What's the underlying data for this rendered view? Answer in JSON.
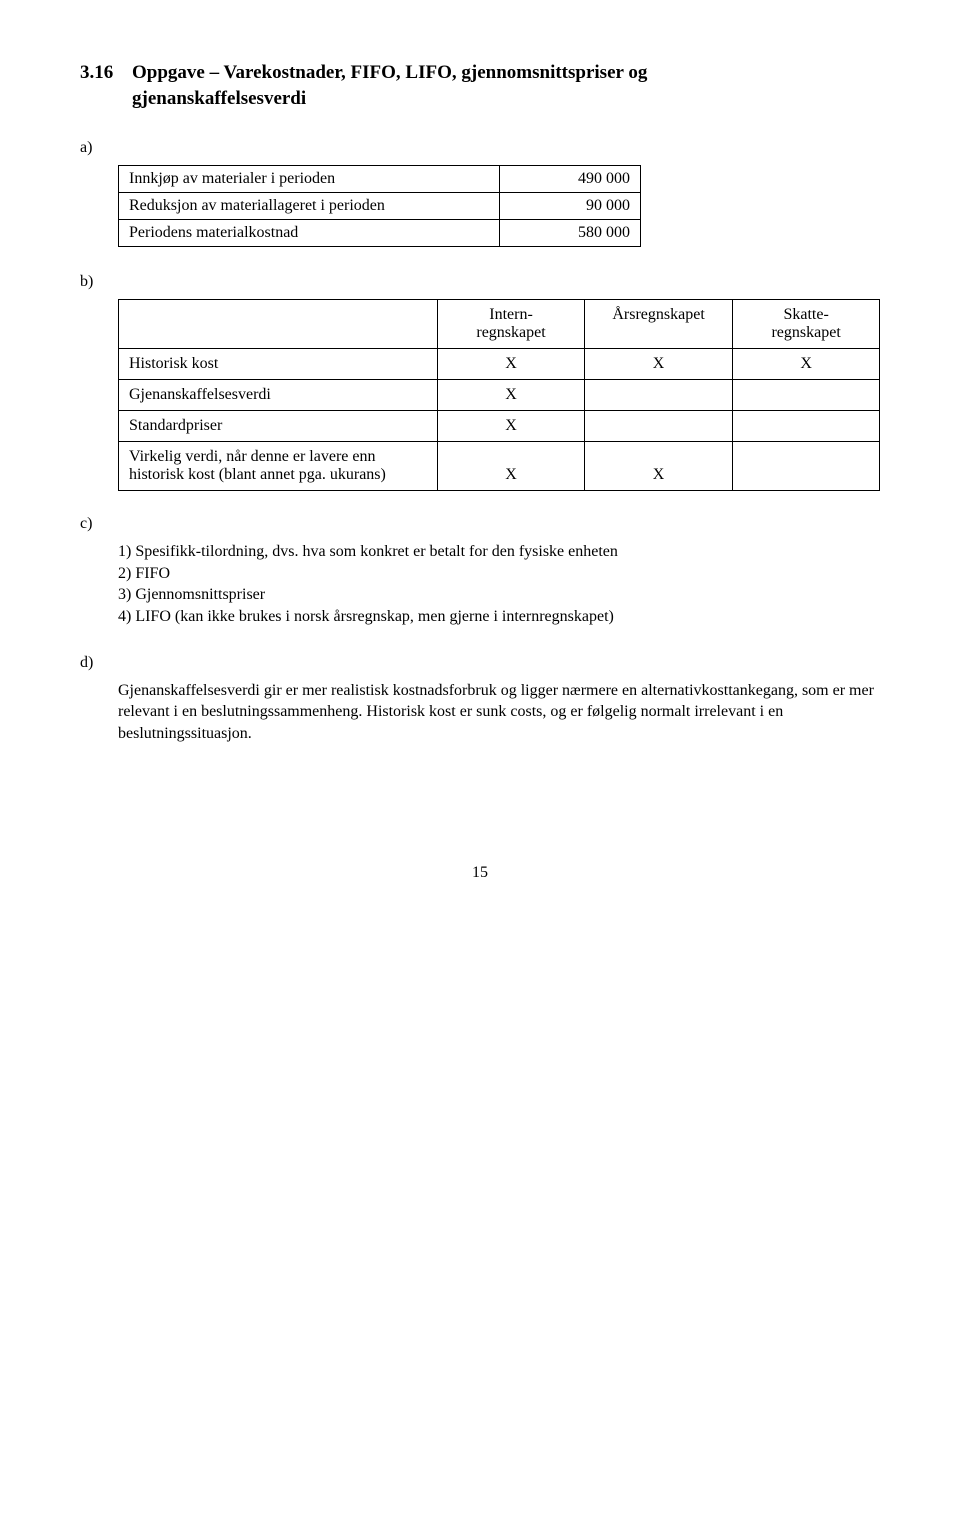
{
  "heading": {
    "number": "3.16",
    "title": "Oppgave – Varekostnader, FIFO, LIFO, gjennomsnittspriser og",
    "subtitle": "gjenanskaffelsesverdi"
  },
  "a": {
    "letter": "a)",
    "rows": [
      {
        "label": "Innkjøp av materialer i perioden",
        "value": "490 000"
      },
      {
        "label": "Reduksjon av materiallageret i perioden",
        "value": "90 000"
      },
      {
        "label": "Periodens materialkostnad",
        "value": "580 000"
      }
    ]
  },
  "b": {
    "letter": "b)",
    "headers": [
      "Intern-\nregnskapet",
      "Årsregnskapet",
      "Skatte-\nregnskapet"
    ],
    "rows": [
      {
        "label": "Historisk kost",
        "cells": [
          "X",
          "X",
          "X"
        ]
      },
      {
        "label": "Gjenanskaffelsesverdi",
        "cells": [
          "X",
          "",
          ""
        ]
      },
      {
        "label": "Standardpriser",
        "cells": [
          "X",
          "",
          ""
        ]
      },
      {
        "label": "Virkelig verdi, når denne er lavere enn historisk kost (blant annet pga. ukurans)",
        "cells": [
          "X",
          "X",
          ""
        ]
      }
    ]
  },
  "c": {
    "letter": "c)",
    "lines": [
      "1) Spesifikk-tilordning, dvs. hva som konkret er betalt for den fysiske enheten",
      "2) FIFO",
      "3) Gjennomsnittspriser",
      "4) LIFO (kan ikke brukes i norsk årsregnskap, men gjerne i internregnskapet)"
    ]
  },
  "d": {
    "letter": "d)",
    "text": "Gjenanskaffelsesverdi gir er mer realistisk kostnadsforbruk og ligger nærmere en alternativkosttankegang, som er mer relevant i en beslutningssammenheng. Historisk kost er sunk costs, og er følgelig normalt irrelevant i en beslutningssituasjon."
  },
  "page_number": "15"
}
